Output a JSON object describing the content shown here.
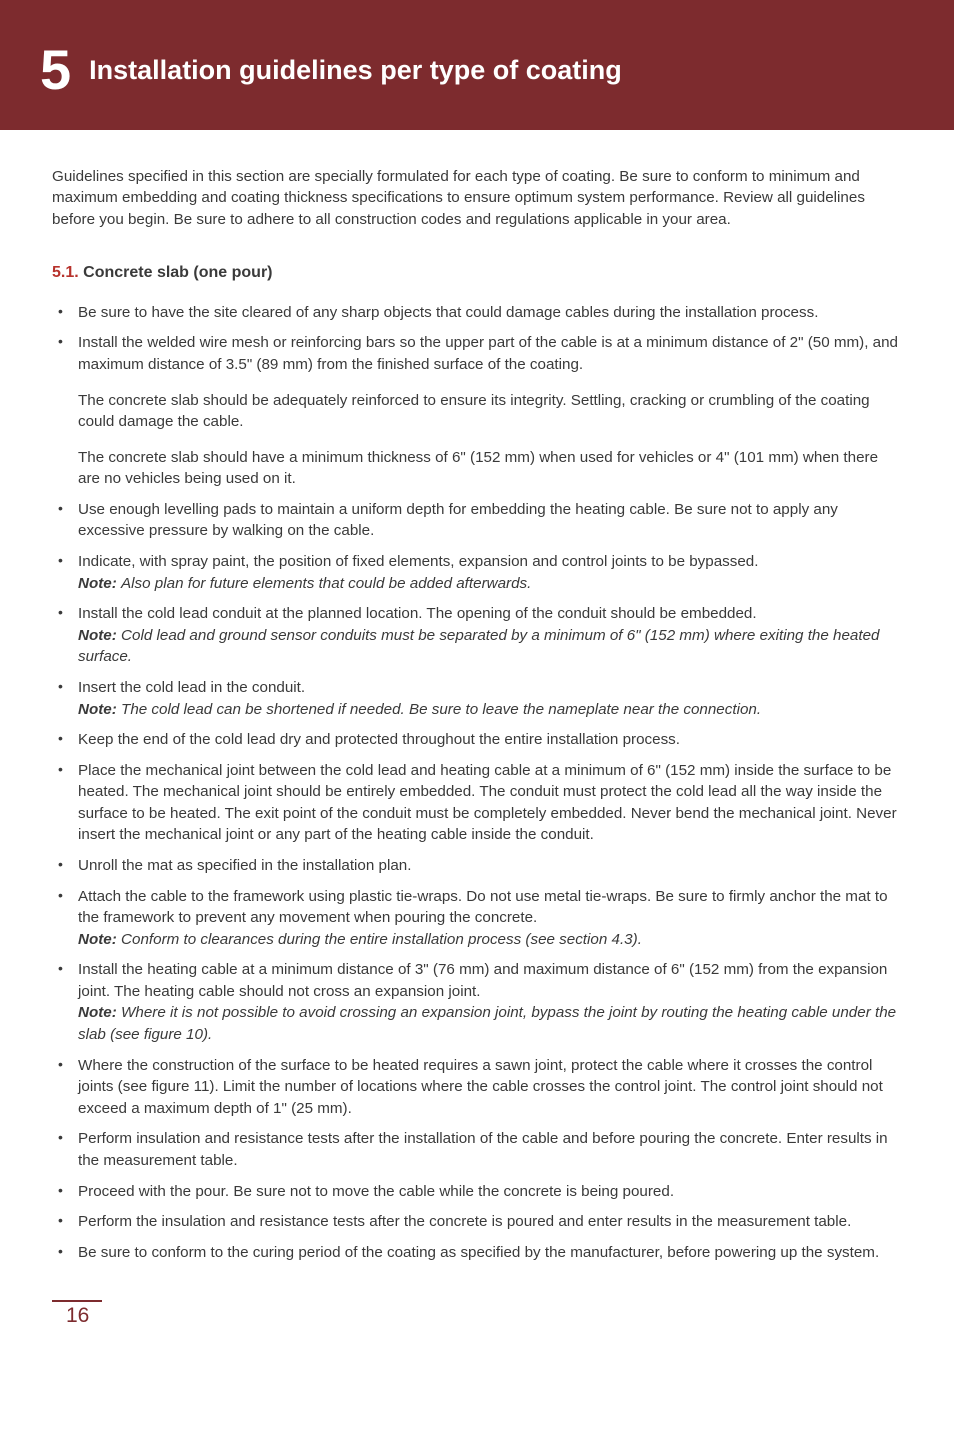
{
  "header": {
    "chapter_number": "5",
    "chapter_title": "Installation guidelines per type of coating"
  },
  "intro": "Guidelines specified in this section are specially formulated for each type of coating. Be sure to conform to minimum and maximum embedding and coating thickness specifications to ensure optimum system performance. Review all guidelines before you begin. Be sure to adhere to all construction codes and regulations applicable in your area.",
  "section": {
    "number": "5.1.",
    "title": "Concrete slab (one pour)"
  },
  "bullets": [
    {
      "text": "Be sure to have the site cleared of any sharp objects that could damage cables during the installation process."
    },
    {
      "text": "Install the welded wire mesh or reinforcing bars so the upper part of the cable is at a minimum distance of 2\" (50 mm), and maximum distance of 3.5\" (89 mm) from the finished surface of the coating.",
      "sub1": "The concrete slab should be adequately reinforced to ensure its integrity. Settling, cracking or crumbling of the coating could damage the cable.",
      "sub2": "The concrete slab should have a minimum thickness of 6\" (152 mm) when used for vehicles or 4\" (101 mm) when there are no vehicles being used on it."
    },
    {
      "text": "Use enough levelling pads to maintain a uniform depth for embedding the heating cable. Be sure not to apply any excessive pressure by walking on the cable."
    },
    {
      "text": "Indicate, with spray paint, the position of fixed elements, expansion and control joints to be bypassed.",
      "note": "Also plan for future elements that could be added afterwards."
    },
    {
      "text": "Install the cold lead conduit at the planned location. The opening of the conduit should be embedded.",
      "note": "Cold lead and ground sensor conduits must be separated by a minimum of 6\" (152 mm) where exiting the heated surface."
    },
    {
      "text": "Insert the cold lead in the conduit.",
      "note": "The cold lead can be shortened if needed. Be sure to leave the nameplate near the connection."
    },
    {
      "text": "Keep the end of the cold lead dry and protected throughout the entire installation process."
    },
    {
      "text": "Place the mechanical joint between the cold lead and heating cable at a minimum of 6\" (152 mm) inside the surface to be heated. The mechanical joint should be entirely embedded. The conduit must protect the cold lead all the way inside the surface to be heated. The exit point of the conduit must be completely embedded. Never bend the mechanical joint. Never insert the mechanical joint or any part of the heating cable inside the conduit."
    },
    {
      "text": "Unroll the mat as specified in the installation plan."
    },
    {
      "text": "Attach the cable to the framework using plastic tie-wraps. Do not use metal tie-wraps. Be sure to firmly anchor the mat to the framework to prevent any movement when pouring the concrete.",
      "note": "Conform to clearances during the entire installation process (see section 4.3)."
    },
    {
      "text": "Install the heating cable at a minimum distance of 3\" (76 mm) and maximum distance of 6\" (152 mm) from the expansion joint. The heating cable should not cross an expansion joint.",
      "note": "Where it is not possible to avoid crossing an expansion joint, bypass the joint by routing the heating cable under the slab (see figure 10)."
    },
    {
      "text": "Where the construction of the surface to be heated requires a sawn joint, protect the cable where it crosses the control joints (see figure 11). Limit the number of locations where the cable crosses the control joint. The control joint should not exceed a maximum depth of 1\" (25 mm)."
    },
    {
      "text": "Perform insulation and resistance tests after the installation of the cable and before pouring the concrete. Enter results in the measurement table."
    },
    {
      "text": "Proceed with the pour. Be sure not to move the cable while the concrete is being poured."
    },
    {
      "text": "Perform the insulation and resistance tests after the concrete is poured and enter results in the measurement table."
    },
    {
      "text": "Be sure to conform to the curing period of the coating as specified by the manufacturer, before powering up the system."
    }
  ],
  "note_label": "Note:",
  "page_number": "16",
  "colors": {
    "brand": "#7d2b2e",
    "accent": "#b7322c",
    "text": "#3a3a3a",
    "bg": "#ffffff"
  }
}
